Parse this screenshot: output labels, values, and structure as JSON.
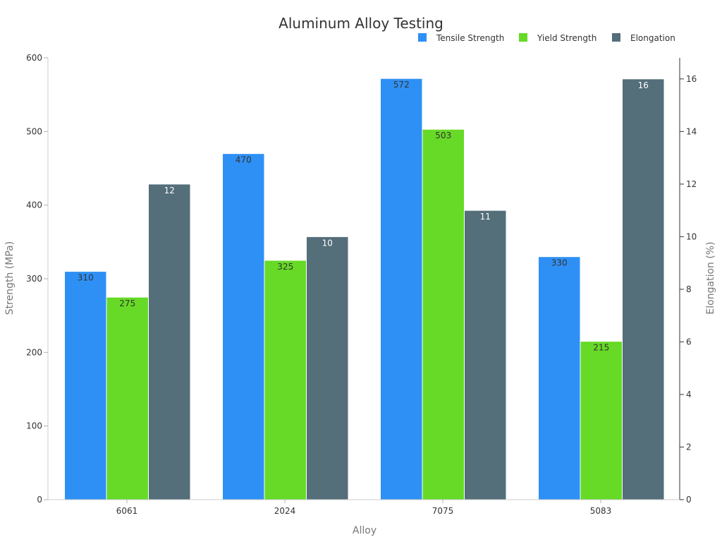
{
  "chart_data": {
    "type": "bar",
    "title": "Aluminum Alloy Testing",
    "xlabel": "Alloy",
    "ylabel": "Strength (MPa)",
    "y2label": "Elongation (%)",
    "categories": [
      "6061",
      "2024",
      "7075",
      "5083"
    ],
    "ylim": [
      0,
      600
    ],
    "y2lim": [
      0,
      16.8
    ],
    "yticks": [
      0,
      100,
      200,
      300,
      400,
      500,
      600
    ],
    "y2ticks": [
      0,
      2,
      4,
      6,
      8,
      10,
      12,
      14,
      16
    ],
    "grid": false,
    "legend_position": "top-right",
    "series": [
      {
        "name": "Tensile Strength",
        "axis": "left",
        "color": "#2e90f5",
        "label_color": "#333333",
        "values": [
          310,
          470,
          572,
          330
        ]
      },
      {
        "name": "Yield Strength",
        "axis": "left",
        "color": "#66da26",
        "label_color": "#333333",
        "values": [
          275,
          325,
          503,
          215
        ]
      },
      {
        "name": "Elongation",
        "axis": "right",
        "color": "#546e7a",
        "label_color": "#ffffff",
        "values": [
          12,
          10,
          11,
          16
        ]
      }
    ]
  }
}
